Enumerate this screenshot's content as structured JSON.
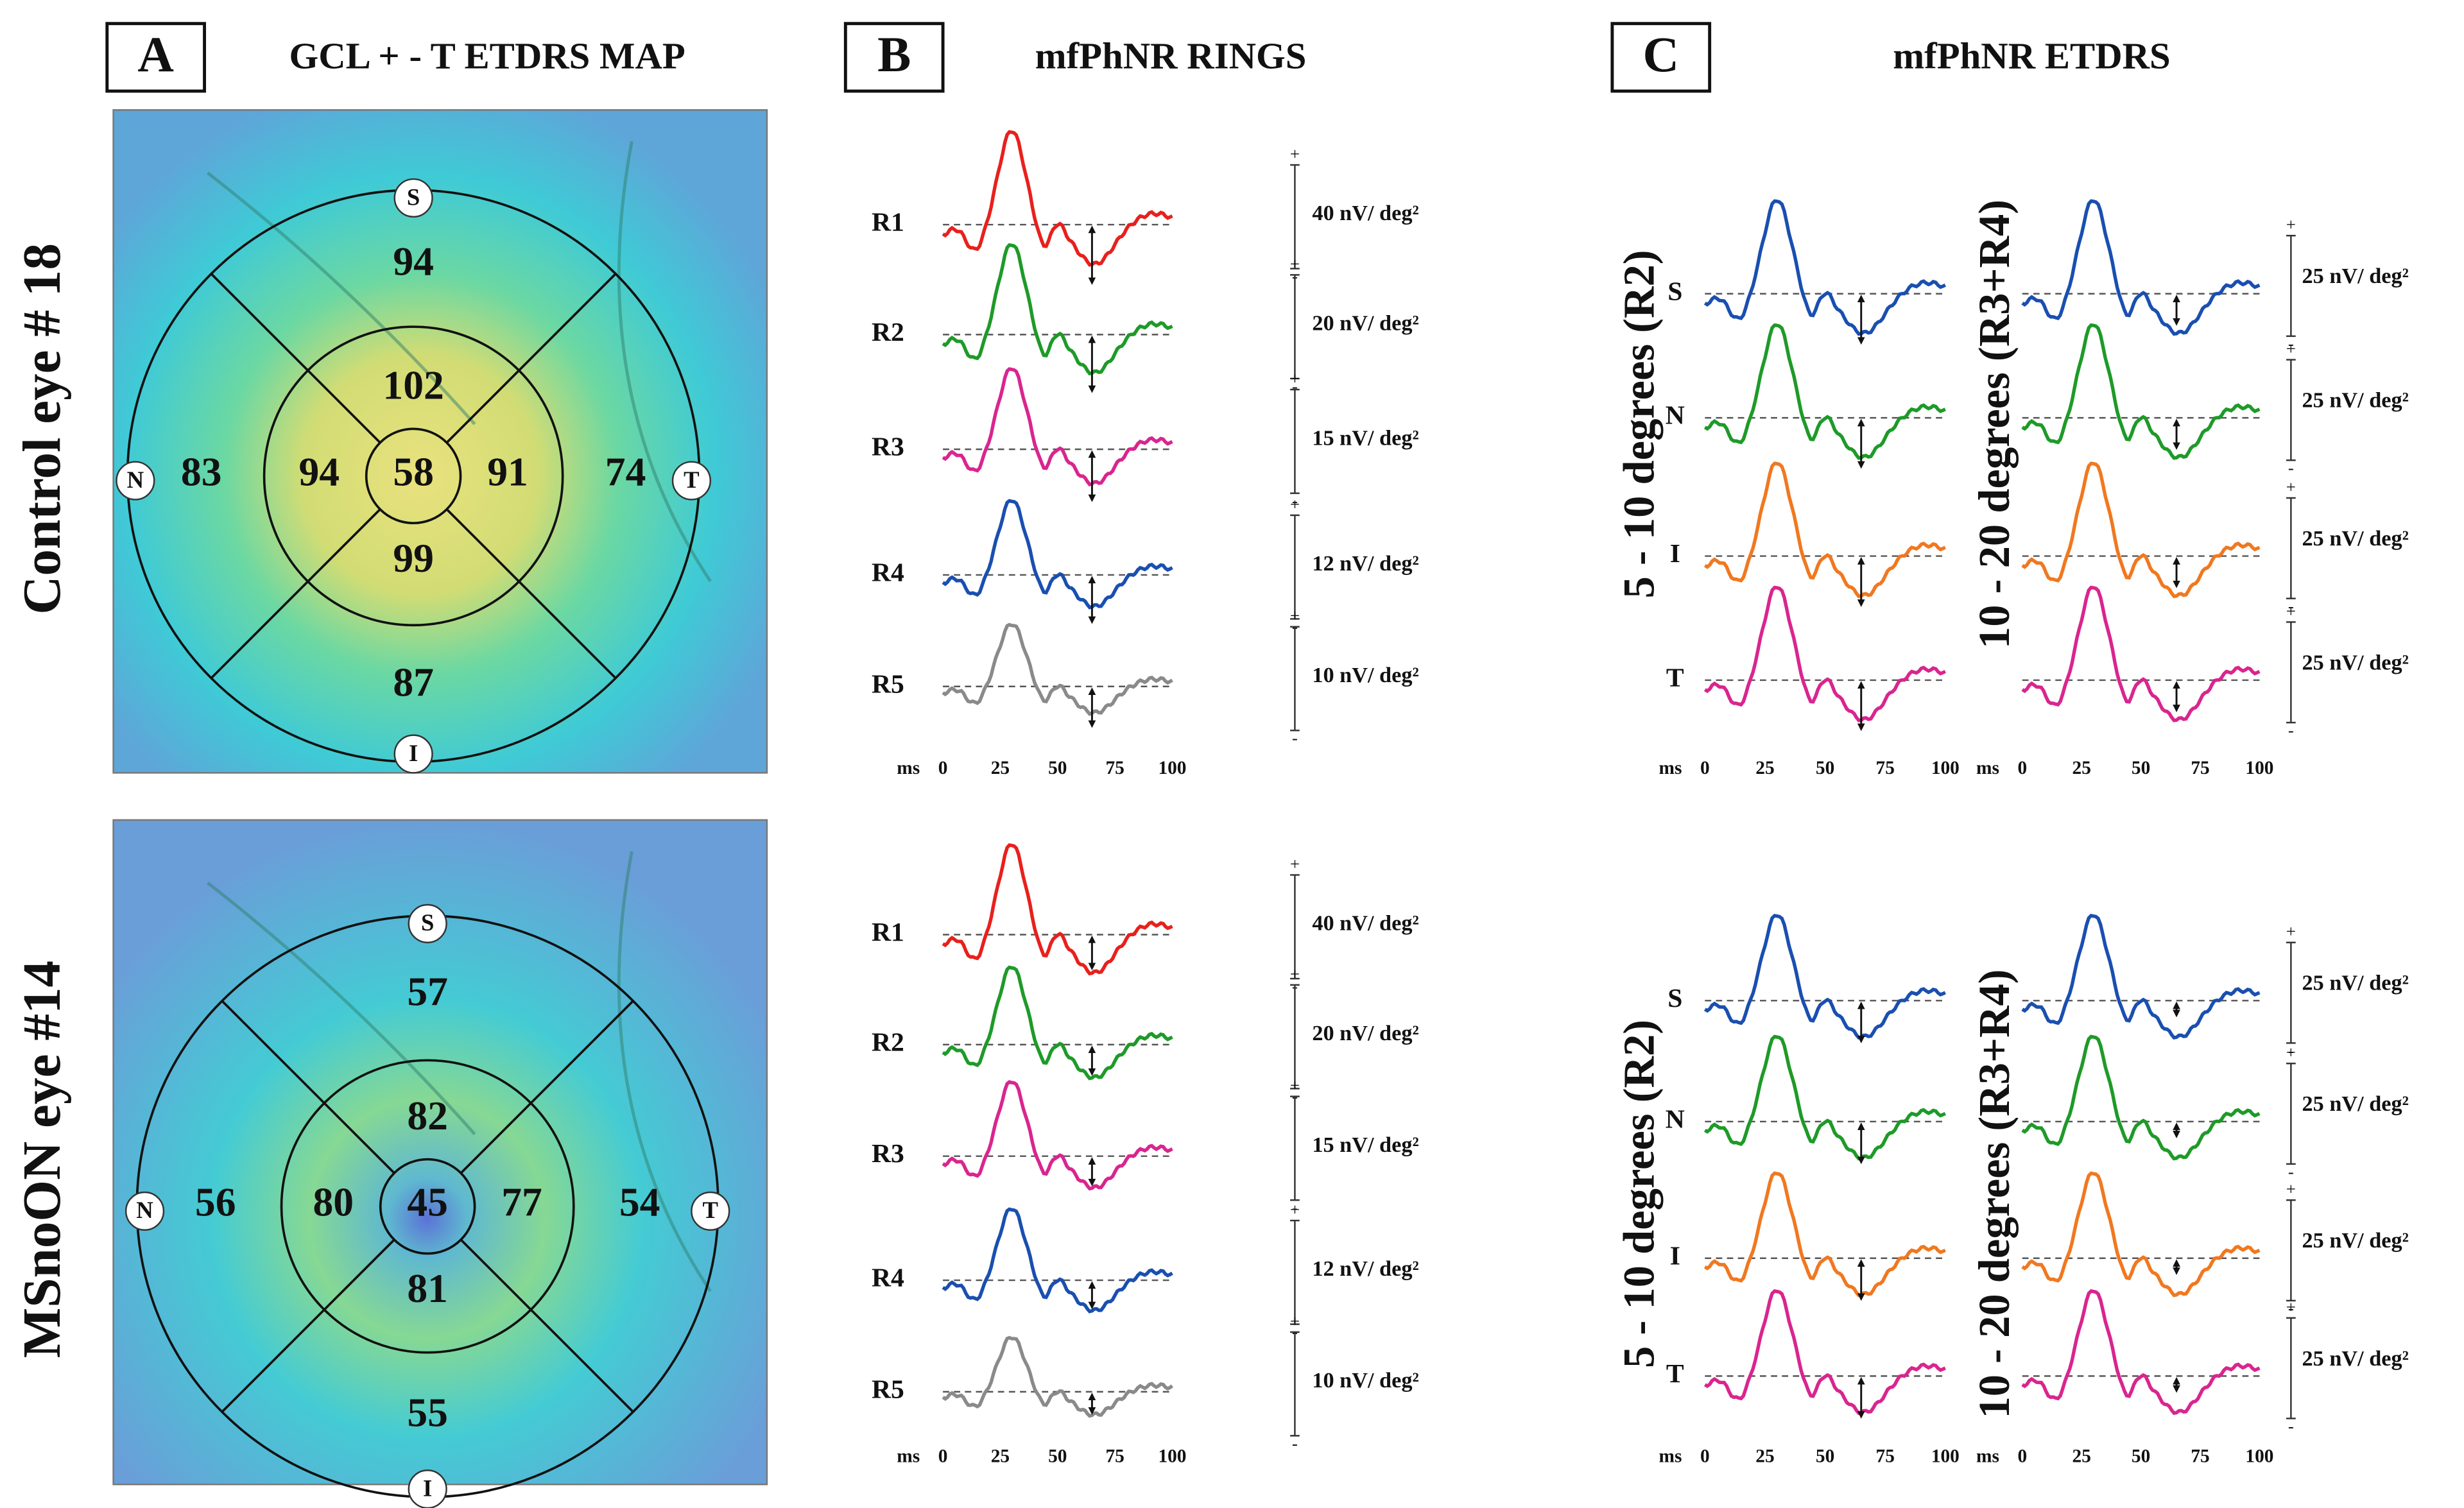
{
  "panels": [
    {
      "letter": "A",
      "title": "GCL + - T ETDRS MAP"
    },
    {
      "letter": "B",
      "title": "mfPhNR RINGS"
    },
    {
      "letter": "C",
      "title": "mfPhNR ETDRS"
    }
  ],
  "maps": [
    {
      "label": "Control eye # 18",
      "center": "58",
      "inner": {
        "S": "102",
        "N": "94",
        "T": "91",
        "I": "99"
      },
      "outer": {
        "S": "94",
        "N": "83",
        "T": "74",
        "I": "87"
      }
    },
    {
      "label": "MSnoON eye #14",
      "center": "45",
      "inner": {
        "S": "82",
        "N": "80",
        "T": "77",
        "I": "81"
      },
      "outer": {
        "S": "57",
        "N": "56",
        "T": "54",
        "I": "55"
      }
    }
  ],
  "quadrants": {
    "S": "S",
    "N": "N",
    "T": "T",
    "I": "I"
  },
  "rings": {
    "labels": [
      "R1",
      "R2",
      "R3",
      "R4",
      "R5"
    ],
    "scales": [
      "40 nV/ deg²",
      "20 nV/ deg²",
      "15 nV/ deg²",
      "12 nV/ deg²",
      "10 nV/ deg²"
    ]
  },
  "etdrs": {
    "groups": [
      "5 - 10 degrees (R2)",
      "10 - 20 degrees (R3+R4)"
    ],
    "labels": [
      "S",
      "N",
      "I",
      "T"
    ],
    "scale": "25 nV/ deg²"
  },
  "axis": {
    "unit": "ms",
    "ticks": [
      0,
      25,
      50,
      75,
      100
    ]
  },
  "signs": [
    "+",
    "-"
  ]
}
